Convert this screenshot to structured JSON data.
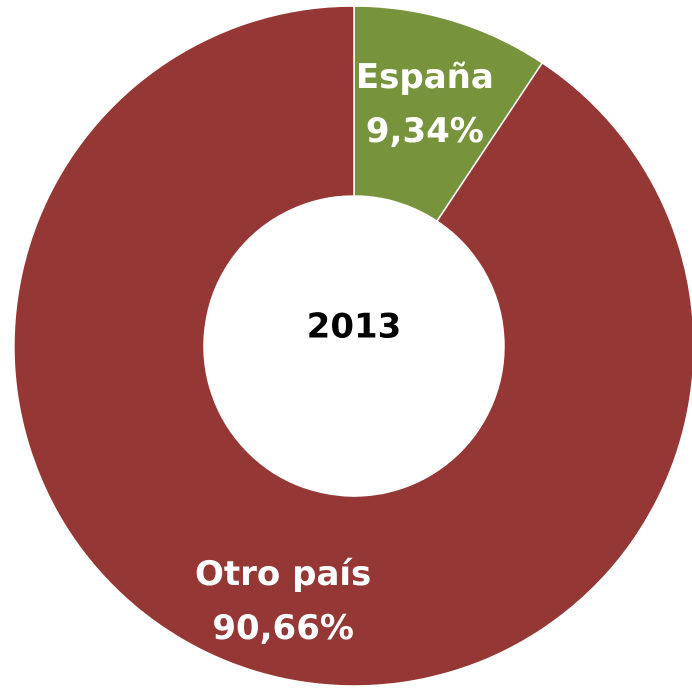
{
  "chart_data": {
    "type": "donut",
    "center_label": "2013",
    "categories": [
      "España",
      "Otro país"
    ],
    "values": [
      9.34,
      90.66
    ],
    "value_labels": [
      "9,34%",
      "90,66%"
    ],
    "colors": [
      "#77933c",
      "#953735"
    ]
  }
}
